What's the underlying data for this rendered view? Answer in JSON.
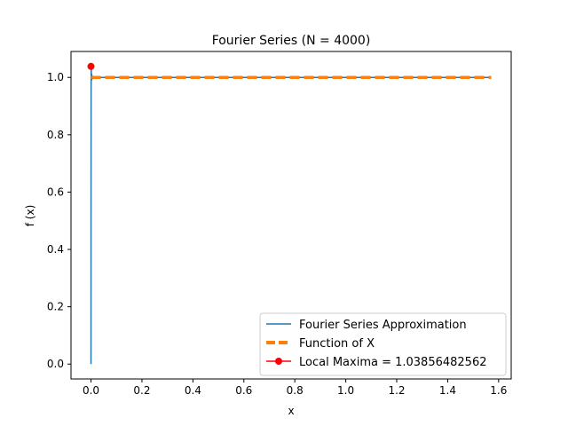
{
  "chart_data": {
    "type": "line",
    "title": "Fourier Series (N = 4000)",
    "xlabel": "x",
    "ylabel": "f (x)",
    "xlim": [
      -0.0785,
      1.6493
    ],
    "ylim": [
      -0.0519,
      1.0905
    ],
    "x_ticks": [
      0.0,
      0.2,
      0.4,
      0.6,
      0.8,
      1.0,
      1.2,
      1.4,
      1.6
    ],
    "x_tick_labels": [
      "0.0",
      "0.2",
      "0.4",
      "0.6",
      "0.8",
      "1.0",
      "1.2",
      "1.4",
      "1.6"
    ],
    "y_ticks": [
      0.0,
      0.2,
      0.4,
      0.6,
      0.8,
      1.0
    ],
    "y_tick_labels": [
      "0.0",
      "0.2",
      "0.4",
      "0.6",
      "0.8",
      "1.0"
    ],
    "grid": false,
    "legend_position": "lower-right",
    "series": [
      {
        "name": "Fourier Series Approximation",
        "style": "solid",
        "color": "#1f77b4",
        "x": [
          0.0,
          0.0002,
          0.0004,
          0.0008,
          0.0012,
          0.002,
          0.003,
          0.005,
          0.01,
          0.05,
          0.5,
          1.0,
          1.5708
        ],
        "y": [
          0.0,
          0.62,
          0.95,
          1.0386,
          1.0,
          0.99,
          1.01,
          0.995,
          1.0,
          1.0,
          1.0,
          1.0,
          1.0
        ]
      },
      {
        "name": "Function of X",
        "style": "dashed",
        "color": "#ff7f0e",
        "x": [
          0.0,
          1.5708
        ],
        "y": [
          1.0,
          1.0
        ]
      },
      {
        "name": "Local Maxima = 1.03856482562",
        "style": "marker",
        "color": "#ff0000",
        "x": [
          0.0
        ],
        "y": [
          1.03856482562
        ]
      }
    ]
  }
}
